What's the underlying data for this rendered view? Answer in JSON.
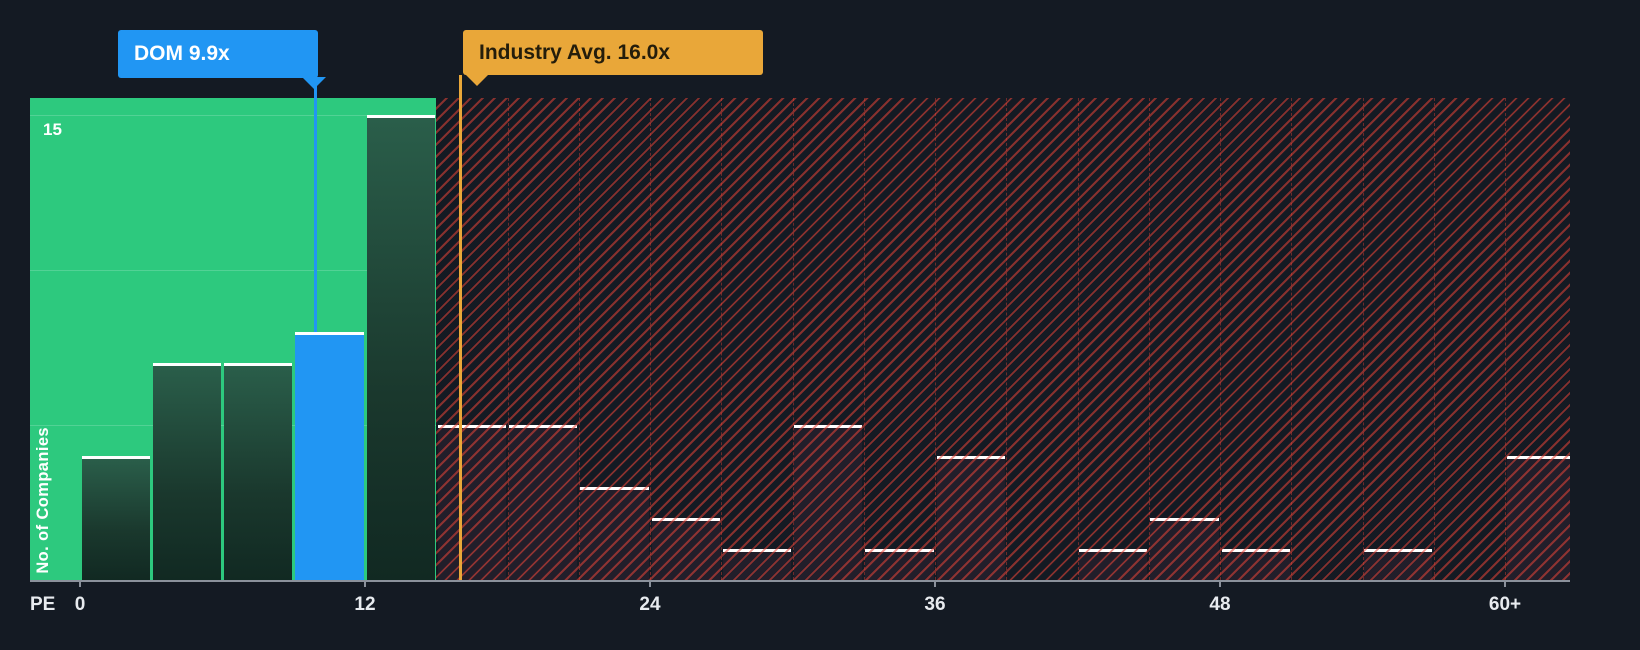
{
  "axis": {
    "x_label": "PE",
    "y_label": "No. of Companies",
    "y_tick": "15",
    "x_ticks": [
      {
        "label": "0",
        "pe": 0
      },
      {
        "label": "12",
        "pe": 12
      },
      {
        "label": "24",
        "pe": 24
      },
      {
        "label": "36",
        "pe": 36
      },
      {
        "label": "48",
        "pe": 48
      },
      {
        "label": "60+",
        "pe": 60
      }
    ]
  },
  "callouts": {
    "company": {
      "label": "DOM 9.9x"
    },
    "industry": {
      "label": "Industry Avg. 16.0x"
    }
  },
  "colors": {
    "background": "#141a23",
    "below_average_zone_green": "#2dc97e",
    "company_blue": "#2196f3",
    "industry_orange": "#e9a739",
    "hatch_red": "#e64438",
    "bar_cap_white": "#ffffff",
    "axis_text": "#e8ebef"
  },
  "chart_data": {
    "type": "bar",
    "title": "",
    "xlabel": "PE",
    "ylabel": "No. of Companies",
    "bin_width": 3,
    "bins_start": [
      0,
      3,
      6,
      9,
      12,
      15,
      18,
      21,
      24,
      27,
      30,
      33,
      36,
      39,
      42,
      45,
      48,
      51,
      54,
      57,
      60
    ],
    "values": [
      4,
      7,
      7,
      8,
      15,
      5,
      5,
      3,
      2,
      1,
      5,
      1,
      4,
      0,
      1,
      2,
      1,
      0,
      1,
      0,
      4
    ],
    "company_pe": 9.9,
    "company_bin_start": 9,
    "industry_avg_pe": 16.0,
    "zone_split_pe": 15,
    "x_tick_values": [
      0,
      12,
      24,
      36,
      48,
      60
    ],
    "x_tick_labels": [
      "0",
      "12",
      "24",
      "36",
      "48",
      "60+"
    ],
    "ylim": [
      0,
      15.5
    ],
    "y_gridlines": [
      5,
      10,
      15
    ],
    "legend": "none",
    "grid": "horizontal lines in green zone only"
  }
}
